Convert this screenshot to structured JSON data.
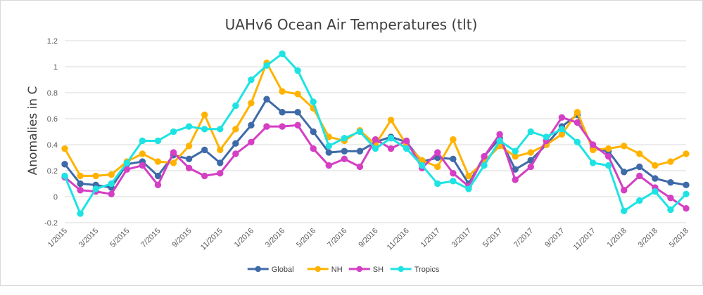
{
  "chart_data": {
    "type": "line",
    "title": "UAHv6 Ocean Air Temperatures (tlt)",
    "xlabel": "",
    "ylabel": "Anomalies in C",
    "ylim": [
      -0.2,
      1.2
    ],
    "yticks": [
      -0.2,
      0,
      0.2,
      0.4,
      0.6,
      0.8,
      1,
      1.2
    ],
    "ytick_labels": [
      "-0.2",
      "0",
      "0.2",
      "0.4",
      "0.6",
      "0.8",
      "1",
      "1.2"
    ],
    "grid": true,
    "legend_position": "bottom",
    "categories": [
      "1/2015",
      "2/2015",
      "3/2015",
      "4/2015",
      "5/2015",
      "6/2015",
      "7/2015",
      "8/2015",
      "9/2015",
      "10/2015",
      "11/2015",
      "12/2015",
      "1/2016",
      "2/2016",
      "3/2016",
      "4/2016",
      "5/2016",
      "6/2016",
      "7/2016",
      "8/2016",
      "9/2016",
      "10/2016",
      "11/2016",
      "12/2016",
      "1/2017",
      "2/2017",
      "3/2017",
      "4/2017",
      "5/2017",
      "6/2017",
      "7/2017",
      "8/2017",
      "9/2017",
      "10/2017",
      "11/2017",
      "12/2017",
      "1/2018",
      "2/2018",
      "3/2018",
      "4/2018",
      "5/2018"
    ],
    "x_tick_labels": [
      "1/2015",
      "3/2015",
      "5/2015",
      "7/2015",
      "9/2015",
      "11/2015",
      "1/2016",
      "3/2016",
      "5/2016",
      "7/2016",
      "9/2016",
      "11/2016",
      "1/2017",
      "3/2017",
      "5/2017",
      "7/2017",
      "9/2017",
      "11/2017",
      "1/2018",
      "3/2018",
      "5/2018"
    ],
    "series": [
      {
        "name": "Global",
        "color": "#3f6aa8",
        "values": [
          0.25,
          0.1,
          0.09,
          0.07,
          0.25,
          0.27,
          0.16,
          0.32,
          0.29,
          0.36,
          0.26,
          0.41,
          0.55,
          0.75,
          0.65,
          0.65,
          0.5,
          0.34,
          0.35,
          0.35,
          0.42,
          0.46,
          0.42,
          0.27,
          0.3,
          0.29,
          0.1,
          0.31,
          0.45,
          0.21,
          0.28,
          0.4,
          0.54,
          0.63,
          0.37,
          0.35,
          0.19,
          0.23,
          0.14,
          0.11,
          0.09
        ]
      },
      {
        "name": "NH",
        "color": "#ffb300",
        "values": [
          0.37,
          0.16,
          0.16,
          0.17,
          0.27,
          0.33,
          0.27,
          0.26,
          0.39,
          0.63,
          0.36,
          0.52,
          0.72,
          1.03,
          0.81,
          0.79,
          0.68,
          0.46,
          0.43,
          0.51,
          0.4,
          0.59,
          0.4,
          0.28,
          0.23,
          0.44,
          0.16,
          0.27,
          0.39,
          0.31,
          0.34,
          0.4,
          0.48,
          0.65,
          0.36,
          0.37,
          0.39,
          0.33,
          0.24,
          0.27,
          0.33
        ]
      },
      {
        "name": "SH",
        "color": "#d43fc4",
        "values": [
          0.15,
          0.05,
          0.04,
          0.02,
          0.21,
          0.24,
          0.09,
          0.34,
          0.22,
          0.16,
          0.18,
          0.33,
          0.42,
          0.54,
          0.54,
          0.55,
          0.37,
          0.24,
          0.29,
          0.23,
          0.44,
          0.37,
          0.43,
          0.22,
          0.34,
          0.18,
          0.08,
          0.31,
          0.48,
          0.13,
          0.23,
          0.43,
          0.61,
          0.57,
          0.4,
          0.31,
          0.05,
          0.16,
          0.07,
          -0.01,
          -0.09
        ]
      },
      {
        "name": "Tropics",
        "color": "#1ee3e3",
        "values": [
          0.16,
          -0.13,
          0.06,
          0.1,
          0.26,
          0.43,
          0.43,
          0.5,
          0.54,
          0.52,
          0.52,
          0.7,
          0.9,
          1.01,
          1.1,
          0.97,
          0.73,
          0.39,
          0.45,
          0.5,
          0.37,
          0.45,
          0.37,
          0.24,
          0.1,
          0.12,
          0.06,
          0.24,
          0.43,
          0.35,
          0.5,
          0.46,
          0.52,
          0.42,
          0.26,
          0.24,
          -0.11,
          -0.03,
          0.04,
          -0.1,
          0.02
        ]
      }
    ]
  }
}
